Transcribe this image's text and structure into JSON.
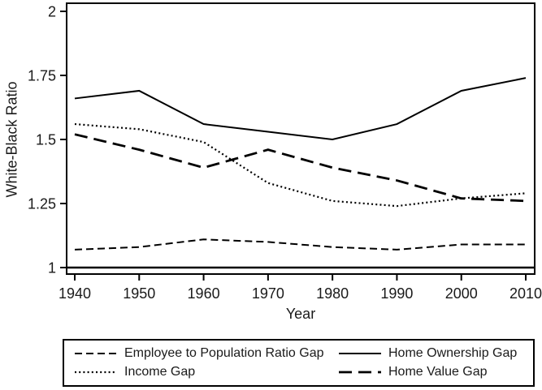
{
  "colors": {
    "foreground": "#000000",
    "background": "#ffffff"
  },
  "chart_data": {
    "type": "line",
    "title": "",
    "xlabel": "Year",
    "ylabel": "White-Black Ratio",
    "x": [
      1940,
      1950,
      1960,
      1970,
      1980,
      1990,
      2000,
      2010
    ],
    "xtick_labels": [
      "1940",
      "1950",
      "1960",
      "1970",
      "1980",
      "1990",
      "2000",
      "2010"
    ],
    "ytick_values": [
      1,
      1.25,
      1.5,
      1.75,
      2
    ],
    "ytick_labels": [
      "1",
      "1.25",
      "1.5",
      "1.75",
      "2"
    ],
    "ylim": [
      1,
      2
    ],
    "xlim": [
      1940,
      2010
    ],
    "grid": false,
    "legend_position": "bottom-box-two-columns",
    "reference_line_y": 1,
    "line_color": "#000000",
    "series": [
      {
        "name": "Employee to Population Ratio Gap",
        "style": "short-dash",
        "values": [
          1.07,
          1.08,
          1.11,
          1.1,
          1.08,
          1.07,
          1.09,
          1.09
        ]
      },
      {
        "name": "Income Gap",
        "style": "dotted",
        "values": [
          1.56,
          1.54,
          1.49,
          1.33,
          1.26,
          1.24,
          1.27,
          1.29
        ]
      },
      {
        "name": "Home Ownership Gap",
        "style": "solid",
        "values": [
          1.66,
          1.69,
          1.56,
          1.53,
          1.5,
          1.56,
          1.69,
          1.74
        ]
      },
      {
        "name": "Home Value Gap",
        "style": "long-dash",
        "values": [
          1.52,
          1.46,
          1.39,
          1.46,
          1.39,
          1.34,
          1.27,
          1.26
        ]
      }
    ]
  }
}
